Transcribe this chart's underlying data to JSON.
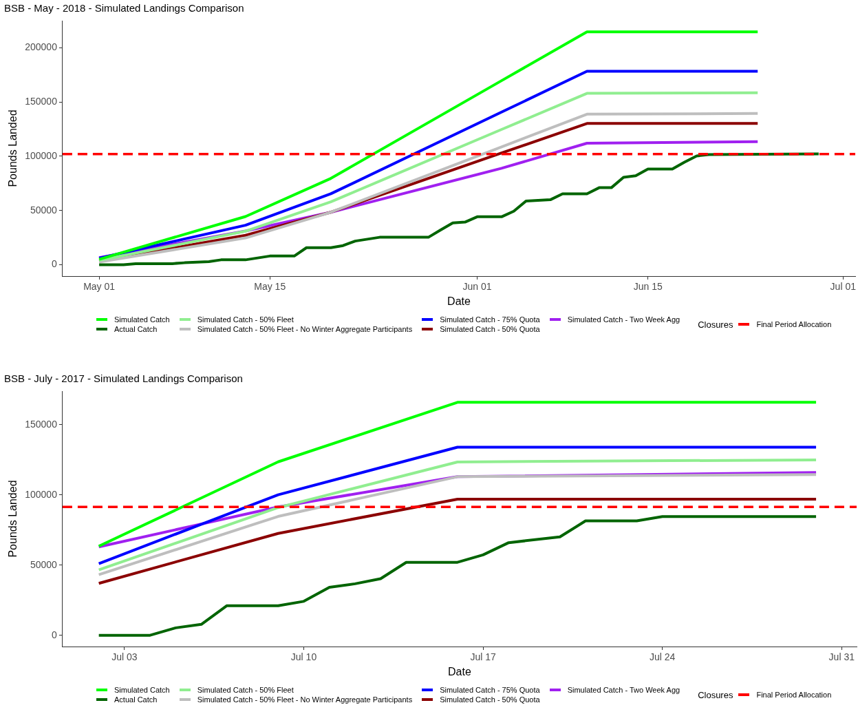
{
  "chart_data": [
    {
      "type": "line",
      "title": "BSB - May - 2018 - Simulated Landings Comparison",
      "xlabel": "Date",
      "ylabel": "Pounds Landed",
      "legend_title": "Closures",
      "legend": "bottom",
      "grid": false,
      "marker": "none",
      "xlim": [
        "2018-04-28",
        "2018-07-02"
      ],
      "xticks": [
        {
          "value": "2018-05-01",
          "label": "May 01"
        },
        {
          "value": "2018-05-15",
          "label": "May 15"
        },
        {
          "value": "2018-06-01",
          "label": "Jun 01"
        },
        {
          "value": "2018-06-15",
          "label": "Jun 15"
        },
        {
          "value": "2018-07-01",
          "label": "Jul 01"
        }
      ],
      "ylim": [
        -10500,
        225000
      ],
      "yticks": [
        0,
        50000,
        100000,
        150000,
        200000
      ],
      "ref_lines": [
        {
          "axis": "y",
          "value": 102000,
          "label": "Final Period Allocation",
          "color": "#ff0000",
          "line_style": "dashed"
        }
      ],
      "series": [
        {
          "name": "Simulated Catch",
          "color": "#00ff00",
          "x": [
            "2018-05-01",
            "2018-05-13",
            "2018-05-20",
            "2018-06-03",
            "2018-06-10",
            "2018-06-24"
          ],
          "values": [
            5000,
            44400,
            79600,
            169700,
            214700,
            214700
          ]
        },
        {
          "name": "Actual Catch",
          "color": "#006400",
          "x": [
            "2018-05-01",
            "2018-05-03",
            "2018-05-04",
            "2018-05-07",
            "2018-05-08",
            "2018-05-10",
            "2018-05-11",
            "2018-05-13",
            "2018-05-15",
            "2018-05-17",
            "2018-05-18",
            "2018-05-20",
            "2018-05-21",
            "2018-05-22",
            "2018-05-24",
            "2018-05-28",
            "2018-05-29",
            "2018-05-30",
            "2018-05-31",
            "2018-06-01",
            "2018-06-03",
            "2018-06-04",
            "2018-06-05",
            "2018-06-07",
            "2018-06-08",
            "2018-06-10",
            "2018-06-11",
            "2018-06-12",
            "2018-06-13",
            "2018-06-14",
            "2018-06-15",
            "2018-06-17",
            "2018-06-18",
            "2018-06-19",
            "2018-06-20",
            "2018-06-29"
          ],
          "values": [
            0,
            0,
            1000,
            1000,
            1800,
            2800,
            4500,
            4500,
            8000,
            8000,
            15700,
            15700,
            17600,
            21800,
            25300,
            25300,
            32000,
            38500,
            39300,
            44200,
            44200,
            49300,
            58700,
            59900,
            65400,
            65400,
            71000,
            71000,
            80600,
            82000,
            88200,
            88200,
            94600,
            100300,
            101500,
            102100
          ]
        },
        {
          "name": "Simulated Catch - 50% Fleet",
          "color": "#90ee90",
          "x": [
            "2018-05-01",
            "2018-05-13",
            "2018-05-20",
            "2018-06-03",
            "2018-06-10",
            "2018-06-24"
          ],
          "values": [
            4000,
            30900,
            58000,
            124700,
            158000,
            158500
          ]
        },
        {
          "name": "Simulated Catch - 50% Fleet - No Winter Aggregate Participants",
          "color": "#bebebe",
          "x": [
            "2018-05-01",
            "2018-05-13",
            "2018-05-20",
            "2018-06-03",
            "2018-06-10",
            "2018-06-24"
          ],
          "values": [
            2500,
            24700,
            48400,
            108600,
            138800,
            139400
          ]
        },
        {
          "name": "Simulated Catch - 75% Quota",
          "color": "#0000ff",
          "x": [
            "2018-05-01",
            "2018-05-13",
            "2018-05-20",
            "2018-06-03",
            "2018-06-10",
            "2018-06-24"
          ],
          "values": [
            6000,
            36400,
            65400,
            140700,
            178300,
            178300
          ]
        },
        {
          "name": "Simulated Catch - 50% Quota",
          "color": "#8b0000",
          "x": [
            "2018-05-01",
            "2018-05-13",
            "2018-05-20",
            "2018-06-03",
            "2018-06-10",
            "2018-06-24"
          ],
          "values": [
            3500,
            27100,
            48400,
            103000,
            130200,
            130200
          ]
        },
        {
          "name": "Simulated Catch - Two Week Agg",
          "color": "#a020f0",
          "x": [
            "2018-05-01",
            "2018-05-13",
            "2018-05-20",
            "2018-06-03",
            "2018-06-10",
            "2018-06-24"
          ],
          "values": [
            6500,
            31100,
            48400,
            88900,
            112000,
            113500
          ]
        }
      ]
    },
    {
      "type": "line",
      "title": "BSB - July - 2017 - Simulated Landings Comparison",
      "xlabel": "Date",
      "ylabel": "Pounds Landed",
      "legend_title": "Closures",
      "legend": "bottom",
      "grid": false,
      "marker": "none",
      "xlim": [
        "2017-06-30T14:00",
        "2017-07-31T14:00"
      ],
      "xticks": [
        {
          "value": "2017-07-03",
          "label": "Jul 03"
        },
        {
          "value": "2017-07-10",
          "label": "Jul 10"
        },
        {
          "value": "2017-07-17",
          "label": "Jul 17"
        },
        {
          "value": "2017-07-24",
          "label": "Jul 24"
        },
        {
          "value": "2017-07-31",
          "label": "Jul 31"
        }
      ],
      "ylim": [
        -8000,
        174000
      ],
      "yticks": [
        0,
        50000,
        100000,
        150000
      ],
      "ref_lines": [
        {
          "axis": "y",
          "value": 91500,
          "label": "Final Period Allocation",
          "color": "#ff0000",
          "line_style": "dashed"
        }
      ],
      "series": [
        {
          "name": "Simulated Catch",
          "color": "#00ff00",
          "x": [
            "2017-07-02",
            "2017-07-09",
            "2017-07-16",
            "2017-07-30"
          ],
          "values": [
            63500,
            123600,
            166000,
            166000
          ]
        },
        {
          "name": "Actual Catch",
          "color": "#006400",
          "x": [
            "2017-07-02",
            "2017-07-04",
            "2017-07-05",
            "2017-07-06",
            "2017-07-07",
            "2017-07-09",
            "2017-07-10",
            "2017-07-11",
            "2017-07-12",
            "2017-07-13",
            "2017-07-14",
            "2017-07-16",
            "2017-07-17",
            "2017-07-18",
            "2017-07-20",
            "2017-07-21",
            "2017-07-23",
            "2017-07-24",
            "2017-07-30"
          ],
          "values": [
            0,
            0,
            5300,
            7800,
            21100,
            21100,
            24200,
            34200,
            36700,
            40300,
            52000,
            52000,
            57300,
            66000,
            70100,
            81500,
            81500,
            84600,
            84600
          ]
        },
        {
          "name": "Simulated Catch - 50% Fleet",
          "color": "#90ee90",
          "x": [
            "2017-07-02",
            "2017-07-09",
            "2017-07-16",
            "2017-07-30"
          ],
          "values": [
            46600,
            91000,
            123500,
            125000
          ]
        },
        {
          "name": "Simulated Catch - 50% Fleet - No Winter Aggregate Participants",
          "color": "#bebebe",
          "x": [
            "2017-07-02",
            "2017-07-09",
            "2017-07-16",
            "2017-07-30"
          ],
          "values": [
            43200,
            84700,
            113000,
            114500
          ]
        },
        {
          "name": "Simulated Catch - 75% Quota",
          "color": "#0000ff",
          "x": [
            "2017-07-02",
            "2017-07-09",
            "2017-07-16",
            "2017-07-30"
          ],
          "values": [
            51100,
            100100,
            134000,
            134000
          ]
        },
        {
          "name": "Simulated Catch - 50% Quota",
          "color": "#8b0000",
          "x": [
            "2017-07-02",
            "2017-07-09",
            "2017-07-16",
            "2017-07-30"
          ],
          "values": [
            37000,
            72600,
            97000,
            97000
          ]
        },
        {
          "name": "Simulated Catch - Two Week Agg",
          "color": "#a020f0",
          "x": [
            "2017-07-02",
            "2017-07-09",
            "2017-07-16",
            "2017-07-30"
          ],
          "values": [
            63000,
            91500,
            113000,
            116000
          ]
        }
      ]
    }
  ]
}
